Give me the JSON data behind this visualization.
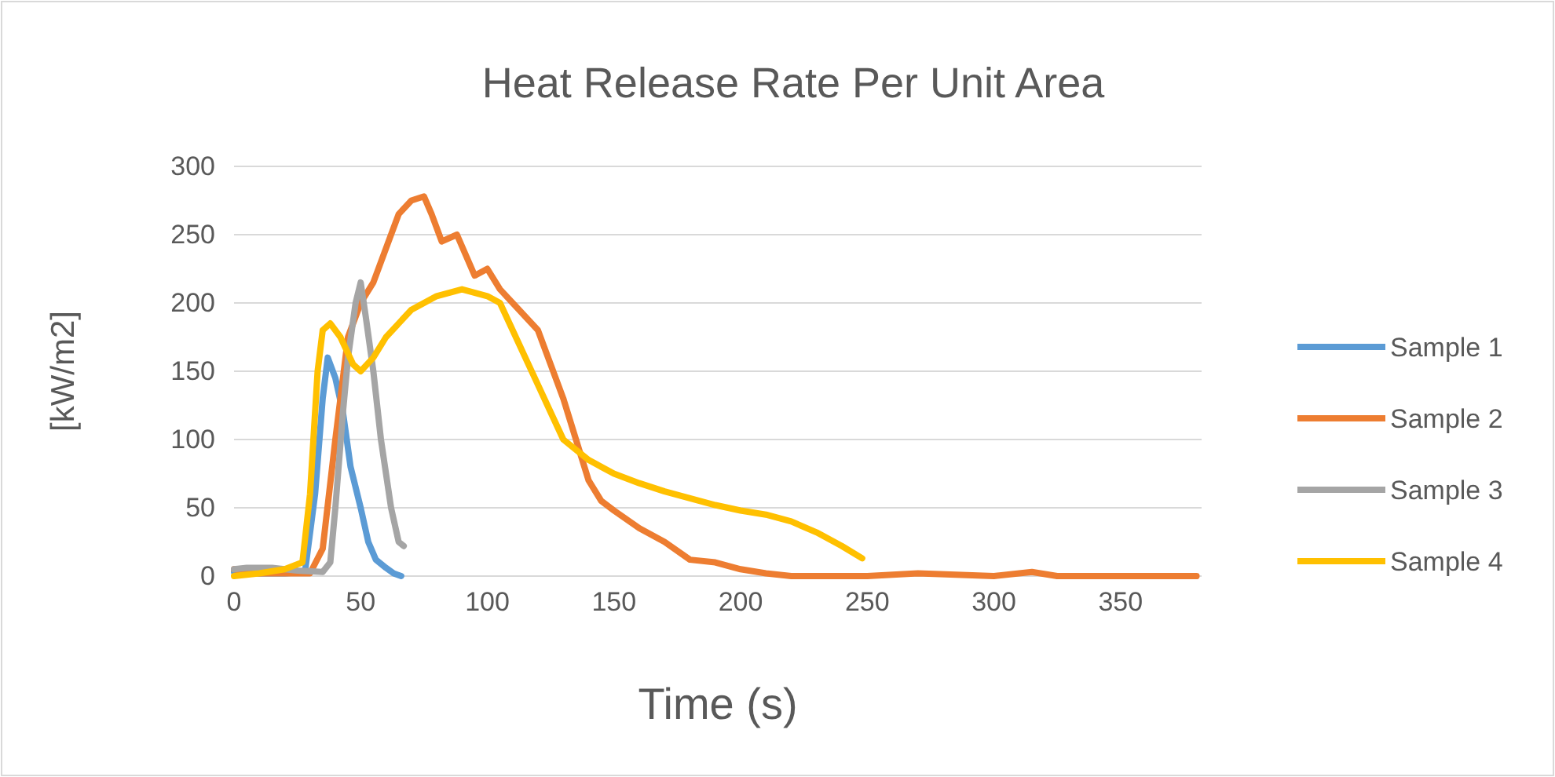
{
  "chart_data": {
    "type": "line",
    "title": "Heat Release Rate Per Unit Area",
    "xlabel": "Time (s)",
    "ylabel": "[kW/m2]",
    "xlim": [
      0,
      382
    ],
    "xticks": [
      0,
      50,
      100,
      150,
      200,
      250,
      300,
      350
    ],
    "ylim": [
      0,
      300
    ],
    "yticks": [
      0,
      50,
      100,
      150,
      200,
      250,
      300
    ],
    "grid": "y",
    "legend": "right",
    "marker": "none",
    "line_style": "solid",
    "series": [
      {
        "name": "Sample 1",
        "color": "#5b9bd5",
        "x": [
          0,
          10,
          20,
          28,
          32,
          35,
          37,
          40,
          43,
          46,
          50,
          53,
          56,
          60,
          63,
          66
        ],
        "values": [
          3,
          2,
          2,
          3,
          60,
          130,
          160,
          145,
          120,
          80,
          50,
          25,
          12,
          6,
          2,
          0
        ]
      },
      {
        "name": "Sample 2",
        "color": "#ed7d31",
        "x": [
          0,
          10,
          20,
          30,
          35,
          40,
          45,
          50,
          55,
          60,
          65,
          70,
          75,
          78,
          82,
          88,
          95,
          100,
          105,
          110,
          120,
          125,
          130,
          135,
          140,
          145,
          150,
          160,
          170,
          180,
          190,
          200,
          210,
          220,
          250,
          270,
          300,
          315,
          325,
          340,
          370,
          380
        ],
        "values": [
          5,
          2,
          2,
          2,
          20,
          100,
          175,
          200,
          215,
          240,
          265,
          275,
          278,
          265,
          245,
          250,
          220,
          225,
          210,
          200,
          180,
          155,
          130,
          100,
          70,
          55,
          48,
          35,
          25,
          12,
          10,
          5,
          2,
          0,
          0,
          2,
          0,
          3,
          0,
          0,
          0,
          0
        ]
      },
      {
        "name": "Sample 3",
        "color": "#a5a5a5",
        "x": [
          0,
          5,
          15,
          25,
          35,
          38,
          40,
          43,
          45,
          48,
          50,
          52,
          55,
          58,
          62,
          65,
          67
        ],
        "values": [
          5,
          6,
          6,
          4,
          3,
          10,
          50,
          120,
          160,
          200,
          215,
          190,
          150,
          100,
          50,
          25,
          22
        ]
      },
      {
        "name": "Sample 4",
        "color": "#ffc000",
        "x": [
          0,
          10,
          20,
          27,
          30,
          33,
          35,
          38,
          42,
          47,
          50,
          55,
          60,
          65,
          70,
          75,
          80,
          90,
          100,
          105,
          110,
          115,
          120,
          125,
          130,
          140,
          150,
          160,
          170,
          180,
          190,
          200,
          210,
          220,
          230,
          240,
          248
        ],
        "values": [
          0,
          2,
          5,
          10,
          60,
          150,
          180,
          185,
          175,
          155,
          150,
          160,
          175,
          185,
          195,
          200,
          205,
          210,
          205,
          200,
          180,
          160,
          140,
          120,
          100,
          85,
          75,
          68,
          62,
          57,
          52,
          48,
          45,
          40,
          32,
          22,
          13
        ]
      }
    ]
  }
}
